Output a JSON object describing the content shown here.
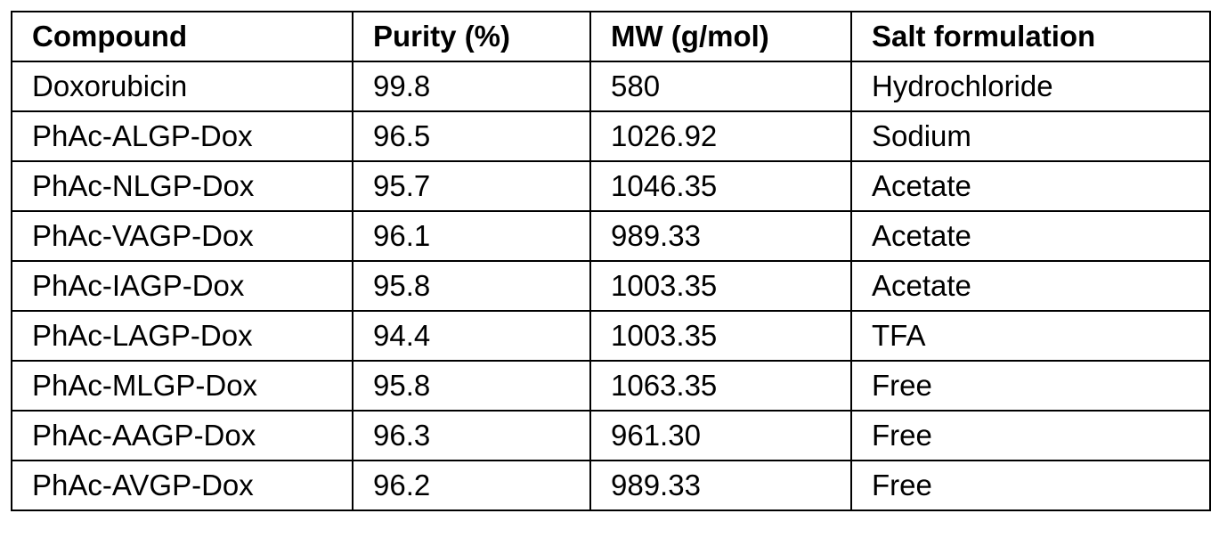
{
  "table": {
    "header": [
      "Compound",
      "Purity (%)",
      "MW (g/mol)",
      "Salt formulation"
    ],
    "rows": [
      [
        "Doxorubicin",
        "99.8",
        "580",
        "Hydrochloride"
      ],
      [
        "PhAc-ALGP-Dox",
        "96.5",
        "1026.92",
        "Sodium"
      ],
      [
        "PhAc-NLGP-Dox",
        "95.7",
        "1046.35",
        "Acetate"
      ],
      [
        "PhAc-VAGP-Dox",
        "96.1",
        "989.33",
        "Acetate"
      ],
      [
        "PhAc-IAGP-Dox",
        "95.8",
        "1003.35",
        "Acetate"
      ],
      [
        "PhAc-LAGP-Dox",
        "94.4",
        "1003.35",
        "TFA"
      ],
      [
        "PhAc-MLGP-Dox",
        "95.8",
        "1063.35",
        "Free"
      ],
      [
        "PhAc-AAGP-Dox",
        "96.3",
        "961.30",
        "Free"
      ],
      [
        "PhAc-AVGP-Dox",
        "96.2",
        "989.33",
        "Free"
      ]
    ]
  }
}
